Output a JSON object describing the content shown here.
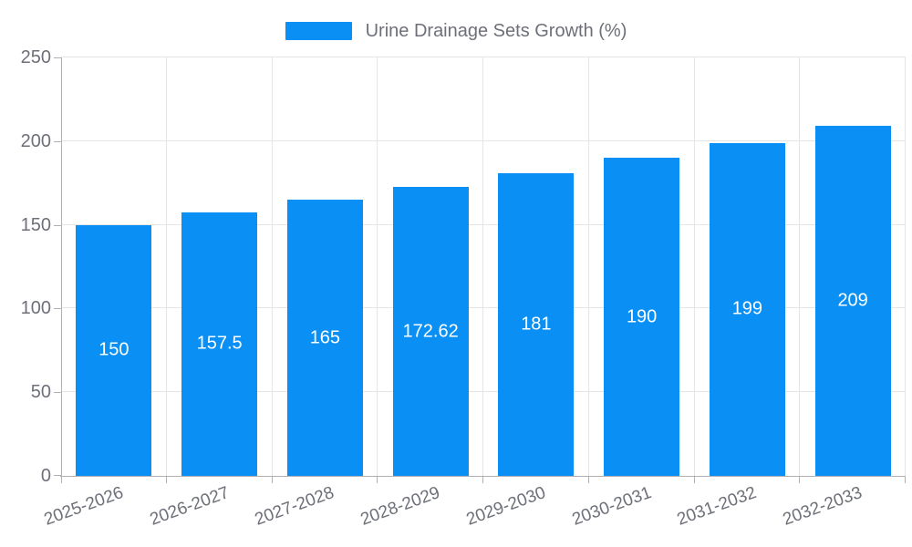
{
  "legend": {
    "label": "Urine Drainage Sets Growth (%)"
  },
  "chart_data": {
    "type": "bar",
    "title": "Urine Drainage Sets Growth (%)",
    "categories": [
      "2025-2026",
      "2026-2027",
      "2027-2028",
      "2028-2029",
      "2029-2030",
      "2030-2031",
      "2031-2032",
      "2032-2033"
    ],
    "values": [
      150,
      157.5,
      165,
      172.62,
      181,
      190,
      199,
      209
    ],
    "value_labels": [
      "150",
      "157.5",
      "165",
      "172.62",
      "181",
      "190",
      "199",
      "209"
    ],
    "xlabel": "",
    "ylabel": "",
    "ylim": [
      0,
      250
    ],
    "ytick_interval": 50,
    "ytick_labels": [
      "0",
      "50",
      "100",
      "150",
      "200",
      "250"
    ],
    "grid": true,
    "legend_position": "top-center",
    "colors": {
      "bar": "#0a90f5",
      "label_text": "#6e7079",
      "value_text": "#ffffff",
      "gridline": "#e5e5e5",
      "axis": "#b0b0b5",
      "background": "#ffffff"
    }
  }
}
